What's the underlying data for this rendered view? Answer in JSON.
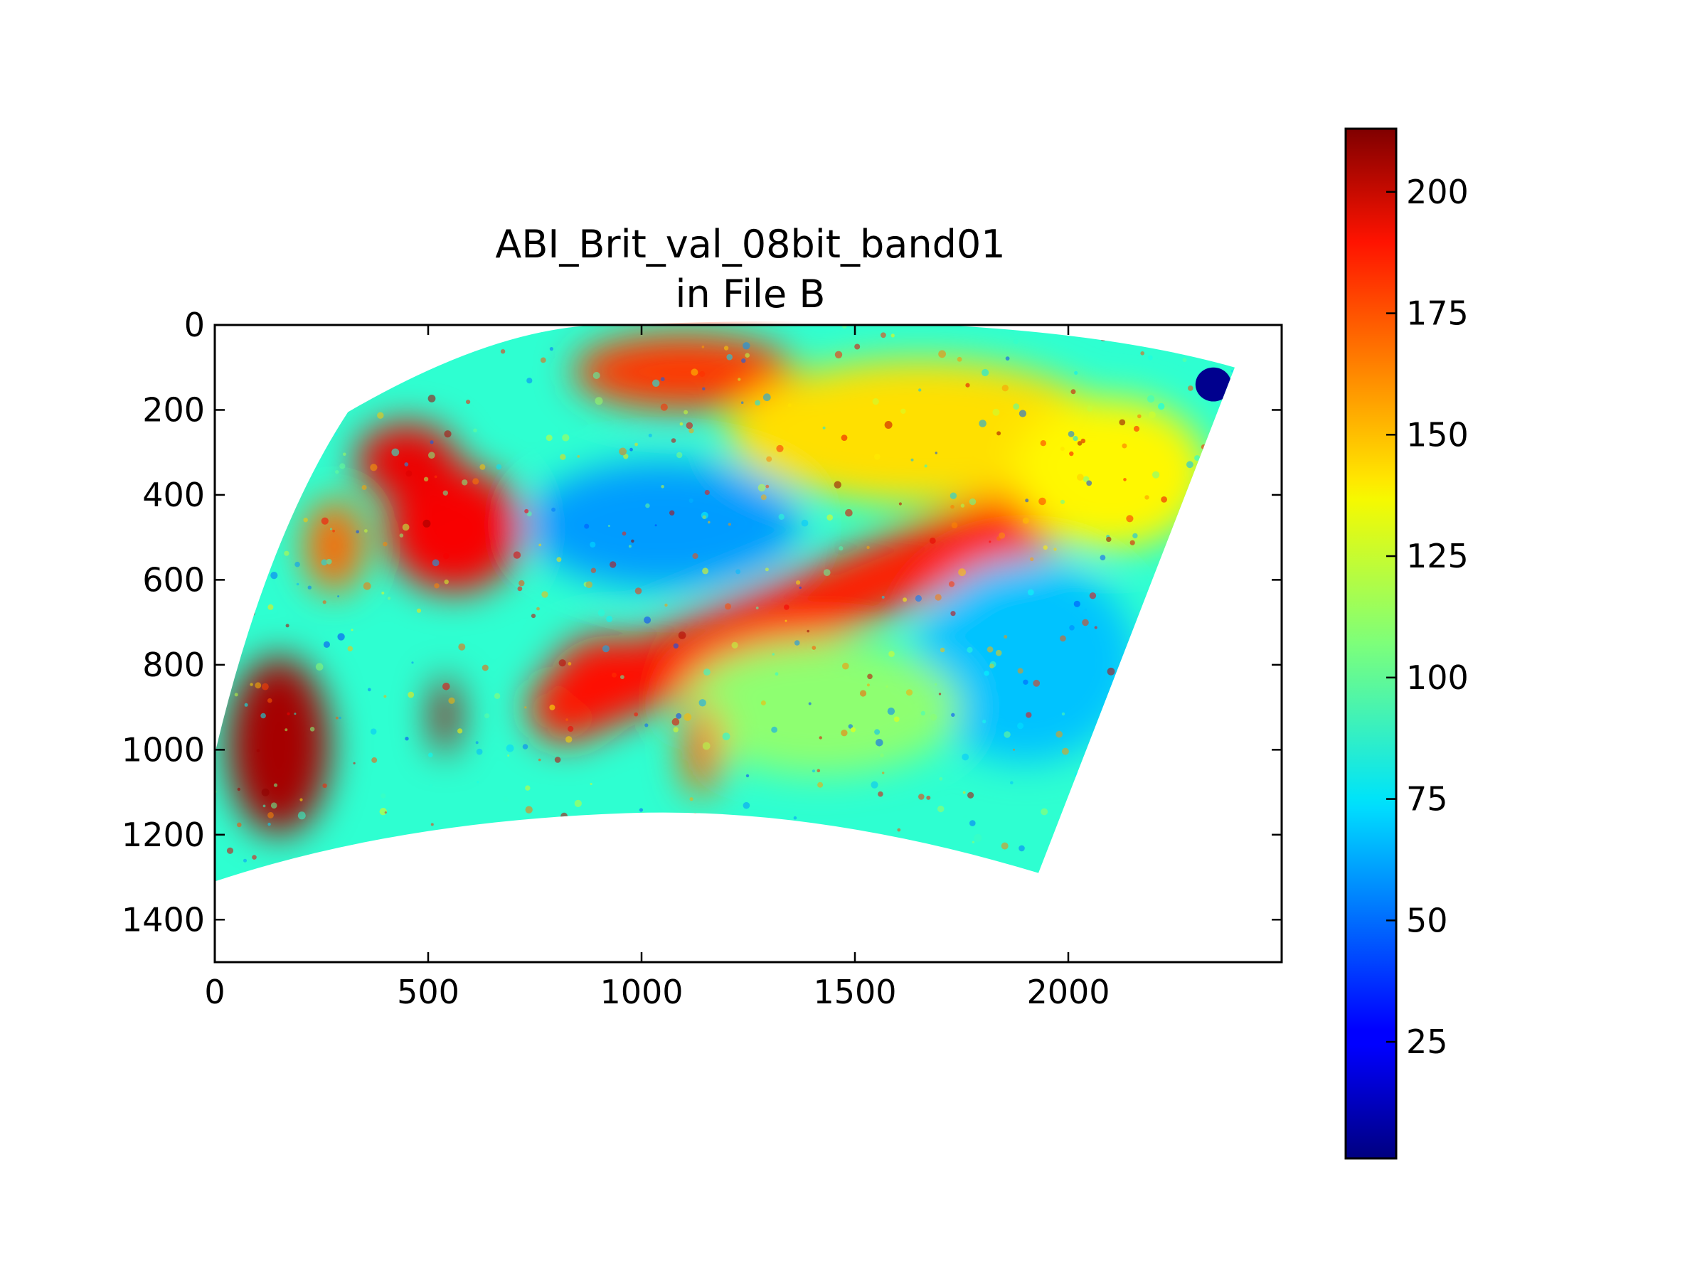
{
  "chart_data": {
    "type": "heatmap",
    "title": [
      "ABI_Brit_val_08bit_band01",
      "in File B"
    ],
    "xlabel": "",
    "ylabel": "",
    "x_ticks": [
      0,
      500,
      1000,
      1500,
      2000
    ],
    "y_ticks": [
      0,
      200,
      400,
      600,
      800,
      1000,
      1200,
      1400
    ],
    "xlim": [
      0,
      2500
    ],
    "ylim": [
      1500,
      0
    ],
    "y_inverted": true,
    "colorbar": {
      "colormap": "jet",
      "range": [
        1,
        213
      ],
      "ticks": [
        25,
        50,
        75,
        100,
        125,
        150,
        175,
        200
      ]
    },
    "swath_outline": {
      "corners": {
        "top_left": [
          312,
          205
        ],
        "top_middle": [
          950,
          0
        ],
        "top_right": [
          2390,
          100
        ],
        "bottom_right": [
          1930,
          1290
        ],
        "bottom_middle": [
          950,
          1150
        ],
        "bottom_left": [
          0,
          1310
        ]
      }
    },
    "features": [
      {
        "kind": "band",
        "value": 180,
        "from": [
          820,
          900
        ],
        "to": [
          1990,
          420
        ],
        "width": 170
      },
      {
        "kind": "region",
        "value": 185,
        "at": [
          930,
          830
        ],
        "rx": 140,
        "ry": 100
      },
      {
        "kind": "region",
        "value": 188,
        "at": [
          560,
          480
        ],
        "rx": 160,
        "ry": 150
      },
      {
        "kind": "region",
        "value": 190,
        "at": [
          450,
          320
        ],
        "rx": 120,
        "ry": 90
      },
      {
        "kind": "region",
        "value": 175,
        "at": [
          1100,
          110
        ],
        "rx": 260,
        "ry": 90
      },
      {
        "kind": "region",
        "value": 140,
        "at": [
          1650,
          250
        ],
        "rx": 450,
        "ry": 170
      },
      {
        "kind": "region",
        "value": 135,
        "at": [
          2100,
          350
        ],
        "rx": 230,
        "ry": 180
      },
      {
        "kind": "region",
        "value": 60,
        "at": [
          1050,
          470
        ],
        "rx": 320,
        "ry": 150
      },
      {
        "kind": "region",
        "value": 68,
        "at": [
          1900,
          790
        ],
        "rx": 260,
        "ry": 240
      },
      {
        "kind": "region",
        "value": 110,
        "at": [
          1420,
          900
        ],
        "rx": 330,
        "ry": 160
      },
      {
        "kind": "region",
        "value": 205,
        "at": [
          150,
          990
        ],
        "rx": 120,
        "ry": 210
      },
      {
        "kind": "region",
        "value": 205,
        "at": [
          540,
          920
        ],
        "rx": 30,
        "ry": 90
      },
      {
        "kind": "region",
        "value": 165,
        "at": [
          1140,
          1000
        ],
        "rx": 45,
        "ry": 110
      },
      {
        "kind": "region",
        "value": 165,
        "at": [
          280,
          520
        ],
        "rx": 70,
        "ry": 110
      },
      {
        "kind": "region",
        "value": 4,
        "at": [
          2340,
          140
        ],
        "rx": 42,
        "ry": 40
      }
    ]
  }
}
